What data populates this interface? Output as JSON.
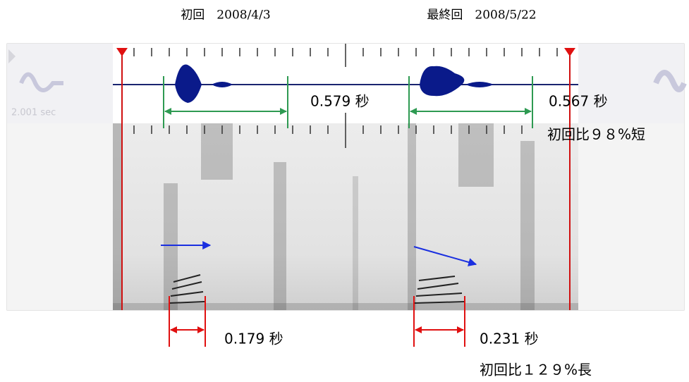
{
  "header": {
    "first": "初回　2008/4/3",
    "last": "最終回　2008/5/22"
  },
  "panel": {
    "selection_info": "2.001 sec"
  },
  "annotations": {
    "first_duration": "0.579 秒",
    "last_duration": "0.567 秒",
    "duration_ratio": "初回比９８%短",
    "first_segment": "0.179 秒",
    "last_segment": "0.231 秒",
    "segment_ratio": "初回比１２９%長"
  }
}
